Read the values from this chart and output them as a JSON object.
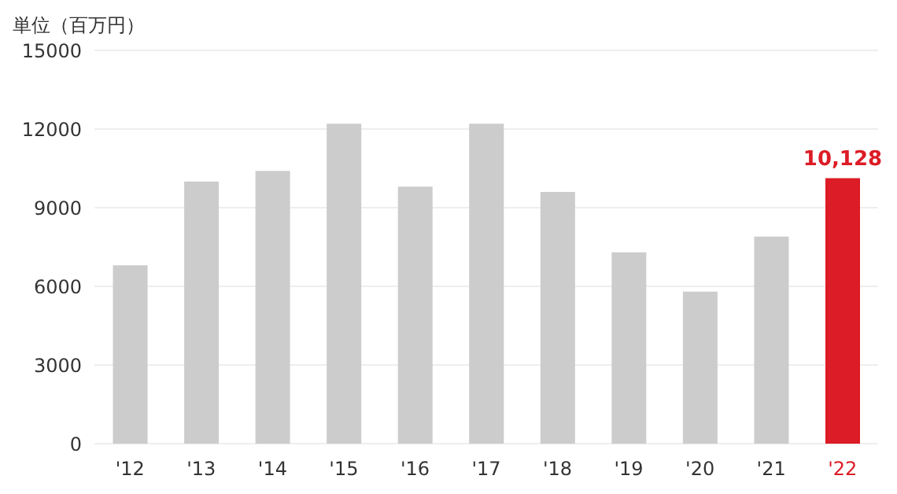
{
  "chart_data": {
    "type": "bar",
    "ylabel": "単位（百万円）",
    "categories": [
      "'12",
      "'13",
      "'14",
      "'15",
      "'16",
      "'17",
      "'18",
      "'19",
      "'20",
      "'21",
      "'22"
    ],
    "values": [
      6800,
      10000,
      10400,
      12200,
      9800,
      12200,
      9600,
      7300,
      5800,
      7900,
      10128
    ],
    "colors": [
      "#cccccc",
      "#cccccc",
      "#cccccc",
      "#cccccc",
      "#cccccc",
      "#cccccc",
      "#cccccc",
      "#cccccc",
      "#cccccc",
      "#cccccc",
      "#dc1c26"
    ],
    "value_labels": [
      null,
      null,
      null,
      null,
      null,
      null,
      null,
      null,
      null,
      null,
      "10,128"
    ],
    "ylim": [
      0,
      15000
    ],
    "yticks": [
      0,
      3000,
      6000,
      9000,
      12000,
      15000
    ],
    "grid": "y"
  }
}
